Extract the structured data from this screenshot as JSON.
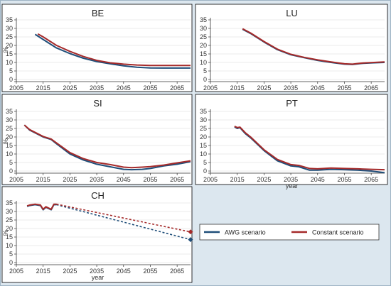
{
  "colors": {
    "awg": "#1f4e79",
    "constant": "#a52a2a",
    "panel_border": "#000000",
    "panel_bg": "#ffffff",
    "outer_bg": "#dce7ef",
    "grid": "#d8d8d8"
  },
  "legend": {
    "awg_label": "AWG scenario",
    "constant_label": "Constant scenario",
    "placement": "bottom-right"
  },
  "chart_data": [
    {
      "type": "line",
      "title": "BE",
      "ylabel": "%",
      "xlabel": "",
      "xlim": [
        2005,
        2070
      ],
      "ylim": [
        0,
        35
      ],
      "yticks": [
        0,
        5,
        10,
        15,
        20,
        25,
        30,
        35
      ],
      "xticks": [
        2005,
        2015,
        2025,
        2035,
        2045,
        2055,
        2065
      ],
      "series": [
        {
          "name": "AWG scenario",
          "style": "solid",
          "x": [
            2012,
            2015,
            2020,
            2025,
            2030,
            2035,
            2040,
            2045,
            2050,
            2055,
            2060,
            2065,
            2070
          ],
          "y": [
            26.5,
            23.5,
            18.5,
            15.2,
            12.5,
            10.5,
            9.2,
            8.0,
            7.2,
            6.8,
            6.7,
            6.7,
            6.7
          ]
        },
        {
          "name": "Constant scenario",
          "style": "solid",
          "x": [
            2013,
            2015,
            2020,
            2025,
            2030,
            2035,
            2040,
            2045,
            2050,
            2055,
            2060,
            2065,
            2070
          ],
          "y": [
            26.8,
            25.0,
            20.0,
            16.5,
            13.5,
            11.2,
            9.8,
            9.0,
            8.5,
            8.2,
            8.2,
            8.2,
            8.2
          ]
        }
      ]
    },
    {
      "type": "line",
      "title": "LU",
      "ylabel": "",
      "xlabel": "",
      "xlim": [
        2005,
        2070
      ],
      "ylim": [
        0,
        35
      ],
      "yticks": [
        0,
        5,
        10,
        15,
        20,
        25,
        30,
        35
      ],
      "xticks": [
        2005,
        2015,
        2025,
        2035,
        2045,
        2055,
        2065
      ],
      "series": [
        {
          "name": "AWG scenario",
          "style": "solid",
          "x": [
            2017,
            2020,
            2025,
            2030,
            2035,
            2040,
            2045,
            2050,
            2055,
            2058,
            2062,
            2066,
            2070
          ],
          "y": [
            29.5,
            27.0,
            22.0,
            17.5,
            14.5,
            12.8,
            11.2,
            10.0,
            9.0,
            8.8,
            9.5,
            9.8,
            10.0
          ]
        },
        {
          "name": "Constant scenario",
          "style": "solid",
          "x": [
            2017,
            2020,
            2025,
            2030,
            2035,
            2040,
            2045,
            2050,
            2055,
            2058,
            2062,
            2066,
            2070
          ],
          "y": [
            29.8,
            27.3,
            22.3,
            17.8,
            14.8,
            13.0,
            11.5,
            10.3,
            9.2,
            9.0,
            9.7,
            10.0,
            10.3
          ]
        }
      ]
    },
    {
      "type": "line",
      "title": "SI",
      "ylabel": "%",
      "xlabel": "",
      "xlim": [
        2005,
        2070
      ],
      "ylim": [
        0,
        35
      ],
      "yticks": [
        0,
        5,
        10,
        15,
        20,
        25,
        30,
        35
      ],
      "xticks": [
        2005,
        2015,
        2025,
        2035,
        2045,
        2055,
        2065
      ],
      "series": [
        {
          "name": "AWG scenario",
          "style": "solid",
          "x": [
            2008,
            2010,
            2015,
            2018,
            2020,
            2025,
            2030,
            2035,
            2040,
            2045,
            2048,
            2052,
            2055,
            2060,
            2065,
            2070
          ],
          "y": [
            27,
            24,
            20,
            18.5,
            16,
            10,
            6.5,
            4,
            2.5,
            1.0,
            0.8,
            1.0,
            1.5,
            3.0,
            4.0,
            5.5
          ]
        },
        {
          "name": "Constant scenario",
          "style": "solid",
          "x": [
            2008,
            2010,
            2015,
            2018,
            2020,
            2025,
            2030,
            2035,
            2040,
            2045,
            2048,
            2052,
            2055,
            2060,
            2065,
            2070
          ],
          "y": [
            27,
            24.3,
            20.3,
            18.8,
            16.5,
            10.8,
            7.3,
            5.0,
            3.8,
            2.3,
            2.0,
            2.3,
            2.6,
            3.5,
            4.8,
            6.0
          ]
        }
      ]
    },
    {
      "type": "line",
      "title": "PT",
      "ylabel": "",
      "xlabel": "year",
      "xlim": [
        2005,
        2070
      ],
      "ylim": [
        0,
        35
      ],
      "yticks": [
        0,
        5,
        10,
        15,
        20,
        25,
        30,
        35
      ],
      "xticks": [
        2005,
        2015,
        2025,
        2035,
        2045,
        2055,
        2065
      ],
      "series": [
        {
          "name": "AWG scenario",
          "style": "solid",
          "x": [
            2014,
            2015,
            2016,
            2018,
            2020,
            2025,
            2030,
            2035,
            2038,
            2042,
            2045,
            2050,
            2055,
            2060,
            2065,
            2070
          ],
          "y": [
            26,
            25,
            25.5,
            22,
            19.5,
            12,
            6,
            3,
            2.5,
            0.5,
            0.5,
            1.0,
            0.8,
            0.5,
            0,
            -1.0
          ]
        },
        {
          "name": "Constant scenario",
          "style": "solid",
          "x": [
            2014,
            2015,
            2016,
            2018,
            2020,
            2025,
            2030,
            2035,
            2038,
            2042,
            2045,
            2050,
            2055,
            2060,
            2065,
            2070
          ],
          "y": [
            26.3,
            25.5,
            25.8,
            22.5,
            20,
            12.5,
            6.8,
            3.8,
            3.3,
            1.5,
            1.3,
            1.8,
            1.5,
            1.3,
            1.0,
            0.8
          ]
        }
      ]
    },
    {
      "type": "line",
      "title": "CH",
      "ylabel": "%",
      "xlabel": "year",
      "xlim": [
        2005,
        2070
      ],
      "ylim": [
        0,
        35
      ],
      "yticks": [
        0,
        5,
        10,
        15,
        20,
        25,
        30,
        35
      ],
      "xticks": [
        2005,
        2015,
        2025,
        2035,
        2045,
        2055,
        2065
      ],
      "series": [
        {
          "name": "AWG scenario",
          "style": "solid",
          "x": [
            2009,
            2010,
            2012,
            2014,
            2015,
            2016,
            2018,
            2019,
            2020
          ],
          "y": [
            33.0,
            33.5,
            34.0,
            33.5,
            31.0,
            32.5,
            31.0,
            34.0,
            34.0
          ]
        },
        {
          "name": "Constant scenario",
          "style": "solid",
          "x": [
            2009,
            2010,
            2012,
            2014,
            2015,
            2016,
            2018,
            2019,
            2020
          ],
          "y": [
            33.3,
            33.8,
            34.3,
            33.8,
            31.3,
            32.8,
            31.3,
            34.3,
            34.3
          ]
        },
        {
          "name": "AWG scenario",
          "style": "dashed",
          "marker_end": "diamond",
          "x": [
            2020,
            2070
          ],
          "y": [
            34.0,
            13.5
          ]
        },
        {
          "name": "Constant scenario",
          "style": "dashed",
          "marker_end": "diamond",
          "x": [
            2020,
            2070
          ],
          "y": [
            34.3,
            18.0
          ]
        }
      ]
    }
  ]
}
